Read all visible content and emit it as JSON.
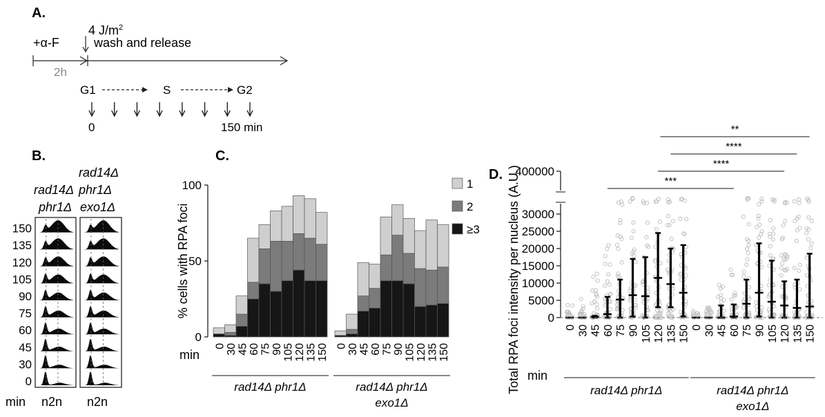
{
  "panelA": {
    "label": "A.",
    "treatment": "+α-F",
    "duration": "2h",
    "dose_text": "4 J/m",
    "dose_sup": "2",
    "release": "wash and release",
    "phase_g1": "G1",
    "phase_s": "S",
    "phase_g2": "G2",
    "start_label": "0",
    "end_label": "150 min",
    "arrow_count": 8
  },
  "panelB": {
    "label": "B.",
    "col1_line1": "rad14Δ",
    "col1_line2": "phr1Δ",
    "col2_line1": "rad14Δ",
    "col2_line2": "phr1Δ",
    "col2_line3": "exo1Δ",
    "row_label_header": "min",
    "rows": [
      "150",
      "135",
      "120",
      "105",
      "90",
      "75",
      "60",
      "45",
      "30",
      "0"
    ],
    "xlabel1": "n2n",
    "xlabel2": "n2n"
  },
  "chart_data": [
    {
      "type": "bar",
      "panel": "C.",
      "stacked": true,
      "ylabel": "% cells with RPA foci",
      "xlabel_prefix": "min",
      "ylim": [
        0,
        100
      ],
      "yticks": [
        "0",
        "50",
        "100"
      ],
      "legend": [
        "1",
        "2",
        "≥3"
      ],
      "colors": {
        "1": "#cfcfcf",
        "2": "#7b7b7b",
        "3": "#161616"
      },
      "groups": [
        {
          "name_line1": "rad14Δ phr1Δ",
          "name_line2": "",
          "categories": [
            "0",
            "30",
            "45",
            "60",
            "75",
            "90",
            "105",
            "120",
            "135",
            "150"
          ],
          "series": [
            {
              "name": "≥3",
              "values": [
                2,
                1,
                7,
                25,
                35,
                30,
                37,
                44,
                37,
                37
              ]
            },
            {
              "name": "2",
              "values": [
                0,
                2,
                8,
                11,
                23,
                33,
                26,
                24,
                28,
                24
              ]
            },
            {
              "name": "1",
              "values": [
                4,
                5,
                12,
                29,
                16,
                20,
                23,
                25,
                26,
                21
              ]
            }
          ]
        },
        {
          "name_line1": "rad14Δ phr1Δ",
          "name_line2": "exo1Δ",
          "categories": [
            "0",
            "30",
            "45",
            "60",
            "75",
            "90",
            "105",
            "120",
            "135",
            "150"
          ],
          "series": [
            {
              "name": "≥3",
              "values": [
                1,
                2,
                17,
                19,
                37,
                37,
                35,
                20,
                21,
                22
              ]
            },
            {
              "name": "2",
              "values": [
                0,
                3,
                10,
                13,
                17,
                30,
                20,
                25,
                23,
                24
              ]
            },
            {
              "name": "1",
              "values": [
                3,
                10,
                22,
                16,
                25,
                20,
                23,
                25,
                33,
                28
              ]
            }
          ]
        }
      ]
    },
    {
      "type": "scatter",
      "panel": "D.",
      "ylabel": "Total RPA foci intensity per nucleus (A.U.)",
      "xlabel_prefix": "min",
      "ylim": [
        0,
        30000
      ],
      "yticks": [
        "0",
        "5000",
        "10000",
        "15000",
        "20000",
        "25000",
        "30000"
      ],
      "ybreak_label": "400000",
      "groups": [
        {
          "name_line1": "rad14Δ phr1Δ",
          "name_line2": "",
          "categories": [
            "0",
            "30",
            "45",
            "60",
            "75",
            "90",
            "105",
            "120",
            "135",
            "150"
          ],
          "median": [
            0,
            0,
            200,
            1000,
            5200,
            6500,
            6200,
            11500,
            9700,
            7200
          ],
          "upper": [
            0,
            0,
            500,
            6000,
            11000,
            17000,
            17500,
            24500,
            20000,
            21000
          ],
          "lower": [
            0,
            0,
            0,
            0,
            0,
            300,
            0,
            3000,
            3000,
            300
          ],
          "spread": [
            4000,
            6000,
            15000,
            26000,
            30000,
            30000,
            30000,
            30000,
            30000,
            30000
          ]
        },
        {
          "name_line1": "rad14Δ phr1Δ",
          "name_line2": "exo1Δ",
          "categories": [
            "0",
            "30",
            "45",
            "60",
            "75",
            "90",
            "105",
            "120",
            "135",
            "150"
          ],
          "median": [
            0,
            0,
            0,
            300,
            4000,
            7200,
            4600,
            3500,
            2800,
            3200
          ],
          "upper": [
            0,
            0,
            3500,
            3800,
            11000,
            21500,
            16500,
            10500,
            11000,
            18500
          ],
          "lower": [
            0,
            0,
            0,
            0,
            0,
            300,
            0,
            0,
            0,
            0
          ],
          "spread": [
            2000,
            4000,
            10000,
            15000,
            30000,
            30000,
            30000,
            30000,
            30000,
            30000
          ]
        }
      ],
      "significance": [
        {
          "label": "**",
          "from_group": 0,
          "from_index": 8,
          "to_group": 1,
          "to_index": 9
        },
        {
          "label": "****",
          "from_group": 0,
          "from_index": 8,
          "to_group": 1,
          "to_index": 8
        },
        {
          "label": "****",
          "from_group": 0,
          "from_index": 7,
          "to_group": 1,
          "to_index": 7
        },
        {
          "label": "***",
          "from_group": 0,
          "from_index": 3,
          "to_group": 1,
          "to_index": 3
        }
      ]
    }
  ]
}
